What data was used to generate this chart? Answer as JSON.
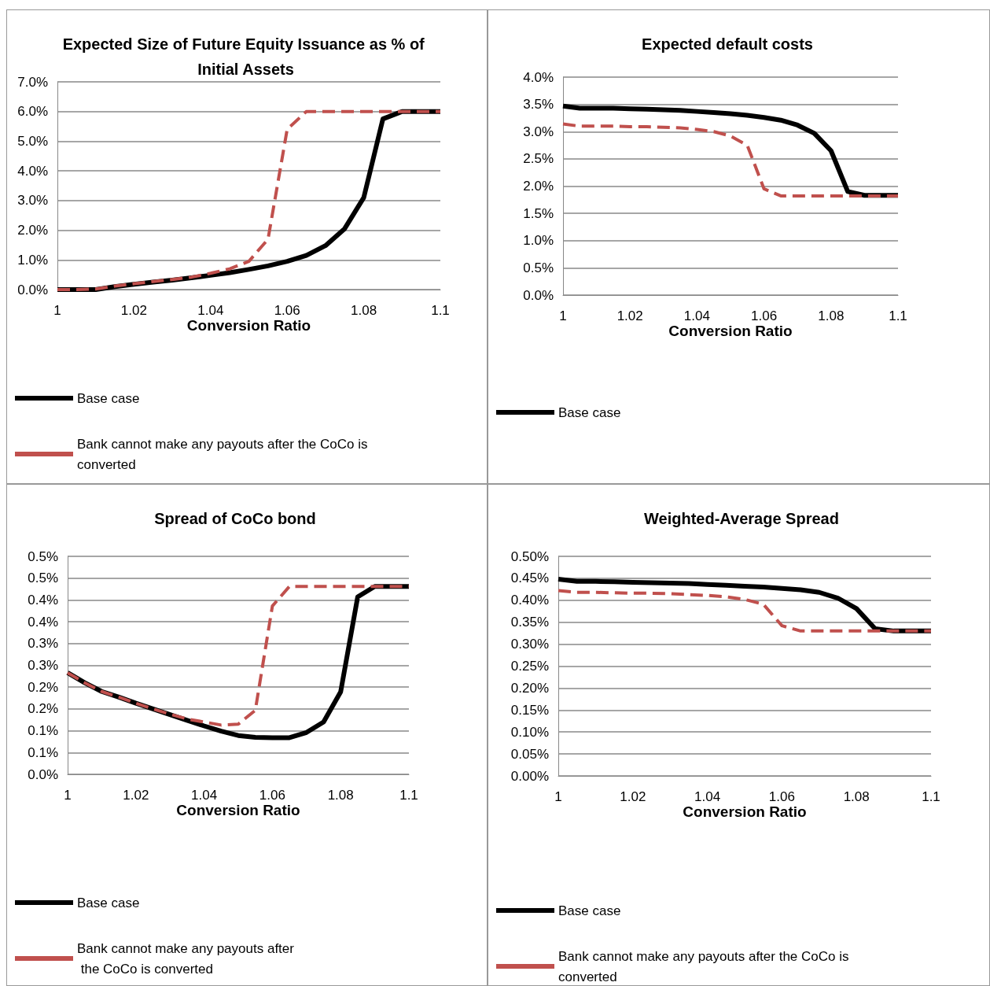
{
  "chart_data": [
    {
      "type": "line",
      "title": "Expected Size of Future Equity Issuance as % of Initial Assets",
      "xlabel": "Conversion Ratio",
      "x": [
        1,
        1.005,
        1.01,
        1.015,
        1.02,
        1.025,
        1.03,
        1.035,
        1.04,
        1.045,
        1.05,
        1.055,
        1.06,
        1.065,
        1.07,
        1.075,
        1.08,
        1.085,
        1.09,
        1.095,
        1.1
      ],
      "series": [
        {
          "name": "Base case",
          "color": "#000000",
          "line_style": "solid",
          "values": [
            0,
            0,
            0,
            0.1,
            0.18,
            0.25,
            0.32,
            0.4,
            0.48,
            0.57,
            0.68,
            0.8,
            0.95,
            1.15,
            1.48,
            2.05,
            3.1,
            5.75,
            6.0,
            6.0,
            6.0
          ]
        },
        {
          "name": "Bank cannot make any payouts after the CoCo is converted",
          "color": "#c0504d",
          "line_style": "dashed",
          "values": [
            0,
            0,
            0.02,
            0.12,
            0.2,
            0.27,
            0.34,
            0.42,
            0.55,
            0.7,
            0.95,
            1.7,
            5.4,
            6.0,
            6.0,
            6.0,
            6.0,
            6.0,
            6.0,
            6.0,
            6.0
          ]
        }
      ],
      "xlim": [
        1,
        1.1
      ],
      "xticks": [
        1,
        1.02,
        1.04,
        1.06,
        1.08,
        1.1
      ],
      "ylim": [
        0,
        7
      ],
      "yticks": [
        {
          "value": 0,
          "label": "0.0%"
        },
        {
          "value": 1,
          "label": "1.0%"
        },
        {
          "value": 2,
          "label": "2.0%"
        },
        {
          "value": 3,
          "label": "3.0%"
        },
        {
          "value": 4,
          "label": "4.0%"
        },
        {
          "value": 5,
          "label": "5.0%"
        },
        {
          "value": 6,
          "label": "6.0%"
        },
        {
          "value": 7,
          "label": "7.0%"
        }
      ],
      "grid": "y",
      "legend": "bottom",
      "marker": "none"
    },
    {
      "type": "line",
      "title": "Expected default costs",
      "xlabel": "Conversion Ratio",
      "x": [
        1,
        1.005,
        1.01,
        1.015,
        1.02,
        1.025,
        1.03,
        1.035,
        1.04,
        1.045,
        1.05,
        1.055,
        1.06,
        1.065,
        1.07,
        1.075,
        1.08,
        1.085,
        1.09,
        1.095,
        1.1
      ],
      "series": [
        {
          "name": "Base case",
          "color": "#000000",
          "line_style": "solid",
          "values": [
            3.47,
            3.43,
            3.43,
            3.43,
            3.42,
            3.41,
            3.4,
            3.39,
            3.37,
            3.35,
            3.33,
            3.3,
            3.26,
            3.21,
            3.12,
            2.97,
            2.65,
            1.9,
            1.83,
            1.83,
            1.83
          ]
        },
        {
          "color": "#c0504d",
          "line_style": "dashed",
          "values": [
            3.14,
            3.1,
            3.1,
            3.1,
            3.09,
            3.09,
            3.08,
            3.07,
            3.04,
            3.0,
            2.92,
            2.75,
            1.95,
            1.82,
            1.82,
            1.82,
            1.82,
            1.82,
            1.82,
            1.82,
            1.82
          ]
        }
      ],
      "xlim": [
        1,
        1.1
      ],
      "xticks": [
        1,
        1.02,
        1.04,
        1.06,
        1.08,
        1.1
      ],
      "ylim": [
        0,
        4
      ],
      "yticks": [
        {
          "value": 0,
          "label": "0.0%"
        },
        {
          "value": 0.5,
          "label": "0.5%"
        },
        {
          "value": 1,
          "label": "1.0%"
        },
        {
          "value": 1.5,
          "label": "1.5%"
        },
        {
          "value": 2,
          "label": "2.0%"
        },
        {
          "value": 2.5,
          "label": "2.5%"
        },
        {
          "value": 3,
          "label": "3.0%"
        },
        {
          "value": 3.5,
          "label": "3.5%"
        },
        {
          "value": 4,
          "label": "4.0%"
        }
      ],
      "grid": "y",
      "legend": "bottom",
      "marker": "none"
    },
    {
      "type": "line",
      "title": "Spread of CoCo bond",
      "xlabel": "Conversion Ratio",
      "x": [
        1,
        1.005,
        1.01,
        1.015,
        1.02,
        1.025,
        1.03,
        1.035,
        1.04,
        1.045,
        1.05,
        1.055,
        1.06,
        1.065,
        1.07,
        1.075,
        1.08,
        1.085,
        1.09,
        1.095,
        1.1
      ],
      "series": [
        {
          "name": "Base case",
          "color": "#000000",
          "line_style": "solid",
          "values": [
            0.233,
            0.21,
            0.19,
            0.177,
            0.163,
            0.15,
            0.137,
            0.124,
            0.111,
            0.099,
            0.089,
            0.085,
            0.084,
            0.084,
            0.096,
            0.12,
            0.189,
            0.407,
            0.431,
            0.431,
            0.431
          ]
        },
        {
          "name": "Bank cannot make any payouts after the CoCo is converted",
          "color": "#c0504d",
          "line_style": "dashed",
          "values": [
            0.233,
            0.21,
            0.19,
            0.177,
            0.163,
            0.15,
            0.138,
            0.127,
            0.12,
            0.113,
            0.115,
            0.147,
            0.386,
            0.431,
            0.431,
            0.431,
            0.431,
            0.431,
            0.431,
            0.431,
            0.431
          ]
        }
      ],
      "xlim": [
        1,
        1.1
      ],
      "xticks": [
        1,
        1.02,
        1.04,
        1.06,
        1.08,
        1.1
      ],
      "ylim": [
        0,
        0.5
      ],
      "yticks": [
        {
          "value": 0,
          "label": "0.0%"
        },
        {
          "value": 0.05,
          "label": "0.1%"
        },
        {
          "value": 0.1,
          "label": "0.1%"
        },
        {
          "value": 0.15,
          "label": "0.2%"
        },
        {
          "value": 0.2,
          "label": "0.2%"
        },
        {
          "value": 0.25,
          "label": "0.3%"
        },
        {
          "value": 0.3,
          "label": "0.3%"
        },
        {
          "value": 0.35,
          "label": "0.4%"
        },
        {
          "value": 0.4,
          "label": "0.4%"
        },
        {
          "value": 0.45,
          "label": "0.5%"
        },
        {
          "value": 0.5,
          "label": "0.5%"
        }
      ],
      "grid": "y",
      "legend": "bottom",
      "marker": "none"
    },
    {
      "type": "line",
      "title": "Weighted-Average Spread",
      "xlabel": "Conversion Ratio",
      "x": [
        1,
        1.005,
        1.01,
        1.015,
        1.02,
        1.025,
        1.03,
        1.035,
        1.04,
        1.045,
        1.05,
        1.055,
        1.06,
        1.065,
        1.07,
        1.075,
        1.08,
        1.085,
        1.09,
        1.095,
        1.1
      ],
      "series": [
        {
          "name": "Base case",
          "color": "#000000",
          "line_style": "solid",
          "values": [
            0.448,
            0.443,
            0.443,
            0.442,
            0.441,
            0.44,
            0.439,
            0.438,
            0.436,
            0.434,
            0.432,
            0.43,
            0.427,
            0.424,
            0.418,
            0.405,
            0.381,
            0.335,
            0.33,
            0.33,
            0.33
          ]
        },
        {
          "name": "Bank cannot make any payouts after the CoCo is converted",
          "color": "#c0504d",
          "line_style": "dashed",
          "values": [
            0.422,
            0.418,
            0.418,
            0.417,
            0.416,
            0.416,
            0.415,
            0.413,
            0.411,
            0.408,
            0.402,
            0.391,
            0.342,
            0.33,
            0.33,
            0.33,
            0.33,
            0.33,
            0.33,
            0.33,
            0.33
          ]
        }
      ],
      "xlim": [
        1,
        1.1
      ],
      "xticks": [
        1,
        1.02,
        1.04,
        1.06,
        1.08,
        1.1
      ],
      "ylim": [
        0,
        0.5
      ],
      "yticks": [
        {
          "value": 0,
          "label": "0.00%"
        },
        {
          "value": 0.05,
          "label": "0.05%"
        },
        {
          "value": 0.1,
          "label": "0.10%"
        },
        {
          "value": 0.15,
          "label": "0.15%"
        },
        {
          "value": 0.2,
          "label": "0.20%"
        },
        {
          "value": 0.25,
          "label": "0.25%"
        },
        {
          "value": 0.3,
          "label": "0.30%"
        },
        {
          "value": 0.35,
          "label": "0.35%"
        },
        {
          "value": 0.4,
          "label": "0.40%"
        },
        {
          "value": 0.45,
          "label": "0.45%"
        },
        {
          "value": 0.5,
          "label": "0.50%"
        }
      ],
      "grid": "y",
      "legend": "bottom",
      "marker": "none"
    }
  ]
}
